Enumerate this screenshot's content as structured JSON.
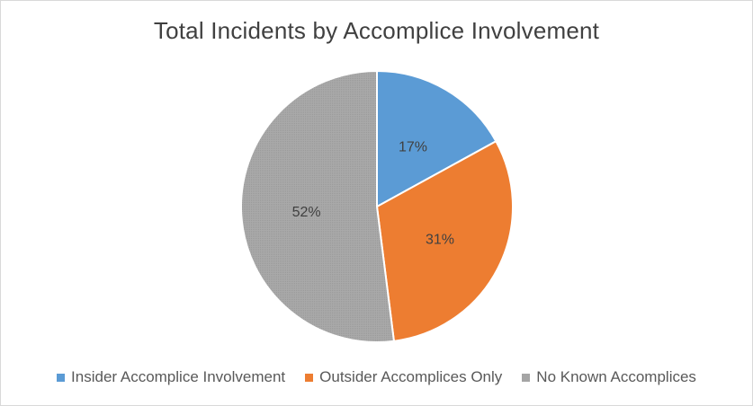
{
  "chart_data": {
    "type": "pie",
    "title": "Total Incidents by Accomplice Involvement",
    "categories": [
      "Insider Accomplice Involvement",
      "Outsider Accomplices Only",
      "No Known Accomplices"
    ],
    "values": [
      17,
      31,
      52
    ],
    "labels": [
      "17%",
      "31%",
      "52%"
    ],
    "colors": [
      "#5b9bd5",
      "#ed7d31",
      "#a5a5a5"
    ],
    "legend": "bottom"
  }
}
